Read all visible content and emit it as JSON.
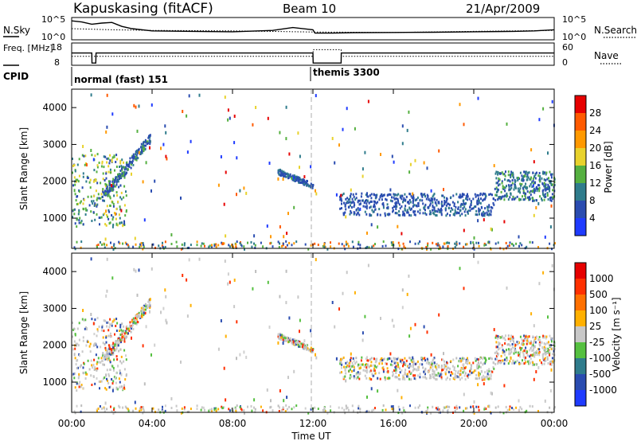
{
  "header": {
    "station": "Kapuskasing (fitACF)",
    "beam": "Beam 10",
    "date": "21/Apr/2009"
  },
  "chart_data": [
    {
      "type": "line",
      "panel": "noise",
      "left_label": "N.Sky",
      "right_label": "N.Search",
      "left_ticks": [
        "10^5",
        "10^0"
      ],
      "right_ticks": [
        "10^5",
        "10^0"
      ],
      "series": [
        {
          "name": "N.Sky",
          "style": "solid",
          "x": [
            0,
            0.5,
            1,
            1.5,
            2,
            2.5,
            3,
            4,
            6,
            8,
            10,
            11,
            12,
            12.1,
            13,
            14,
            16,
            18,
            20,
            22,
            23,
            24
          ],
          "y": [
            0.85,
            0.8,
            0.7,
            0.75,
            0.78,
            0.6,
            0.5,
            0.4,
            0.38,
            0.36,
            0.42,
            0.55,
            0.45,
            0.3,
            0.3,
            0.32,
            0.33,
            0.34,
            0.36,
            0.38,
            0.4,
            0.45
          ]
        },
        {
          "name": "N.Search",
          "style": "dotted",
          "x": [
            0,
            2,
            4,
            8,
            12,
            16,
            20,
            24
          ],
          "y": [
            0.5,
            0.45,
            0.42,
            0.4,
            0.35,
            0.33,
            0.38,
            0.42
          ]
        }
      ]
    },
    {
      "type": "line",
      "panel": "frequency",
      "left_label": "Freq. [MHz]",
      "right_label": "Nave",
      "left_ticks": [
        "18",
        "8"
      ],
      "right_ticks": [
        "60",
        "0"
      ],
      "series": [
        {
          "name": "Freq.",
          "style": "solid",
          "x": [
            0,
            1.0,
            1.01,
            1.2,
            1.21,
            12.0,
            12.01,
            13.4,
            13.41,
            24
          ],
          "y": [
            0.55,
            0.55,
            0.1,
            0.1,
            0.55,
            0.55,
            0.1,
            0.1,
            0.55,
            0.55
          ]
        },
        {
          "name": "Nave",
          "style": "dotted",
          "x": [
            0,
            12,
            12.01,
            13.4,
            13.41,
            24
          ],
          "y": [
            0.4,
            0.4,
            0.7,
            0.7,
            0.4,
            0.4
          ]
        }
      ]
    },
    {
      "type": "table",
      "panel": "cpid",
      "label": "CPID",
      "segments": [
        {
          "name": "normal (fast) 151",
          "start_hour": 0
        },
        {
          "name": "themis 3300",
          "start_hour": 12
        }
      ]
    },
    {
      "type": "heatmap",
      "panel": "power",
      "ylabel": "Slant Range [km]",
      "ylim": [
        180,
        4500
      ],
      "xlim": [
        0,
        24
      ],
      "y_ticks": [
        "1000",
        "2000",
        "3000",
        "4000"
      ],
      "colorbar_label": "Power [dB]",
      "colorbar_ticks": [
        "4",
        "8",
        "12",
        "16",
        "20",
        "24",
        "28"
      ],
      "colorbar_colors": [
        "#1f3bff",
        "#2a4cb0",
        "#2f7c8c",
        "#55b040",
        "#e8d22c",
        "#ff9900",
        "#ff5a00",
        "#e60000"
      ],
      "features": [
        {
          "name": "early-echo-band",
          "x_range": [
            0,
            2.7
          ],
          "y_range": [
            800,
            2800
          ]
        },
        {
          "name": "rising-arc",
          "x_range": [
            1.5,
            3.9
          ],
          "y_range": [
            1600,
            3200
          ]
        },
        {
          "name": "evening-trace",
          "x_range": [
            10.2,
            12.0
          ],
          "y_range": [
            1700,
            2200
          ]
        },
        {
          "name": "main-band",
          "x_range": [
            13.3,
            21.0
          ],
          "y_range": [
            1100,
            1700
          ]
        },
        {
          "name": "late-cluster",
          "x_range": [
            21.0,
            24.0
          ],
          "y_range": [
            1500,
            2300
          ]
        },
        {
          "name": "near-range",
          "x_range": [
            0,
            24
          ],
          "y_range": [
            180,
            400
          ]
        }
      ]
    },
    {
      "type": "heatmap",
      "panel": "velocity",
      "ylabel": "Slant Range [km]",
      "xlabel": "Time UT",
      "ylim": [
        180,
        4500
      ],
      "xlim": [
        0,
        24
      ],
      "y_ticks": [
        "1000",
        "2000",
        "3000",
        "4000"
      ],
      "x_ticks": [
        "00:00",
        "04:00",
        "08:00",
        "12:00",
        "16:00",
        "20:00",
        "00:00"
      ],
      "colorbar_label": "Velocity [m s⁻¹]",
      "colorbar_ticks": [
        "1000",
        "500",
        "100",
        "25",
        "-25",
        "-100",
        "-500",
        "-1000"
      ],
      "colorbar_colors": [
        "#1f3bff",
        "#2a4cb0",
        "#2f7c8c",
        "#55c040",
        "#c8c8c8",
        "#ffb000",
        "#ff7000",
        "#ff3000",
        "#e60000"
      ]
    }
  ]
}
